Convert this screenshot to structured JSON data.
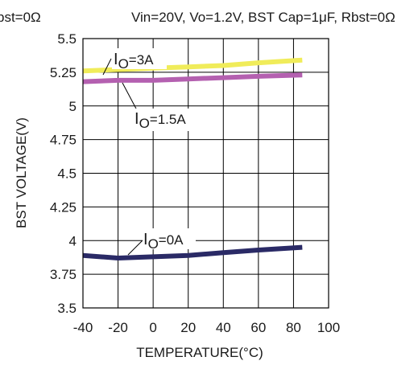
{
  "header": {
    "left_fragment": "bst=0Ω",
    "conditions": "Vin=20V, Vo=1.2V, BST Cap=1μF, Rbst=0Ω"
  },
  "chart_data": {
    "type": "line",
    "xlabel": "TEMPERATURE(°C)",
    "ylabel": "BST VOLTAGE(V)",
    "xlim": [
      -40,
      100
    ],
    "ylim": [
      3.5,
      5.5
    ],
    "x_ticks": [
      "-40",
      "-20",
      "0",
      "20",
      "40",
      "60",
      "80",
      "100"
    ],
    "y_ticks": [
      "5.5",
      "5.25",
      "5",
      "4.75",
      "4.5",
      "4.25",
      "4",
      "3.75",
      "3.5"
    ],
    "x_tick_values": [
      -40,
      -20,
      0,
      20,
      40,
      60,
      80,
      100
    ],
    "y_tick_values": [
      5.5,
      5.25,
      5.0,
      4.75,
      4.5,
      4.25,
      4.0,
      3.75,
      3.5
    ],
    "grid": true,
    "series": [
      {
        "name": "IO=3A",
        "color": "#f0ec5a",
        "x": [
          -40,
          -20,
          0,
          20,
          40,
          60,
          85
        ],
        "values": [
          5.26,
          5.27,
          5.28,
          5.29,
          5.3,
          5.32,
          5.34
        ]
      },
      {
        "name": "IO=1.5A",
        "color": "#b460b0",
        "x": [
          -40,
          -20,
          0,
          20,
          40,
          60,
          85
        ],
        "values": [
          5.18,
          5.19,
          5.19,
          5.2,
          5.21,
          5.22,
          5.23
        ]
      },
      {
        "name": "IO=0A",
        "color": "#2a2a66",
        "x": [
          -40,
          -20,
          0,
          20,
          40,
          60,
          85
        ],
        "values": [
          3.89,
          3.87,
          3.88,
          3.89,
          3.91,
          3.93,
          3.95
        ]
      }
    ]
  },
  "annotations": {
    "io3a": {
      "main": "I",
      "sub": "O",
      "rest": "=3A"
    },
    "io15a": {
      "main": "I",
      "sub": "O",
      "rest": "=1.5A"
    },
    "io0a": {
      "main": "I",
      "sub": "O",
      "rest": "=0A"
    }
  }
}
